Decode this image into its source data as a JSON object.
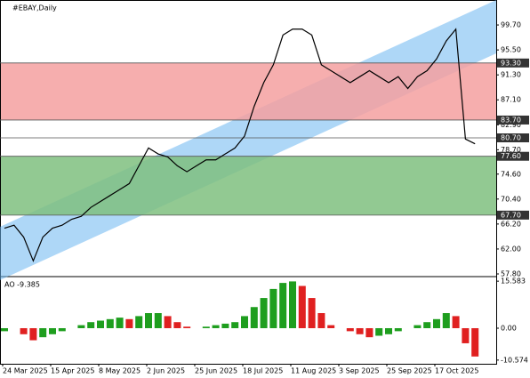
{
  "chart_data": [
    {
      "type": "line",
      "title": "#EBAY,Daily",
      "color": "#000000",
      "values": [
        65.5,
        66,
        64,
        60,
        64,
        65.5,
        66,
        67,
        67.5,
        69,
        70,
        71,
        72,
        73,
        76,
        79,
        78,
        77.5,
        76,
        75,
        76,
        77,
        77,
        78,
        79,
        81,
        86,
        90,
        93,
        98,
        99,
        99,
        98,
        93,
        92,
        91,
        90,
        91,
        92,
        91,
        90,
        91,
        89,
        91,
        92,
        94,
        97,
        99,
        80.5,
        79.7
      ],
      "ylim": [
        57.5,
        103.9
      ],
      "yticks": [
        {
          "value": 99.7,
          "label": "99.70"
        },
        {
          "value": 95.5,
          "label": "95.50"
        },
        {
          "value": 91.3,
          "label": "91.30"
        },
        {
          "value": 87.1,
          "label": "87.10"
        },
        {
          "value": 82.9,
          "label": "82.90"
        },
        {
          "value": 78.7,
          "label": "78.70"
        },
        {
          "value": 74.6,
          "label": "74.60"
        },
        {
          "value": 70.4,
          "label": "70.40"
        },
        {
          "value": 66.2,
          "label": "66.20"
        },
        {
          "value": 62,
          "label": "62.00"
        },
        {
          "value": 57.8,
          "label": "57.80"
        }
      ],
      "levels": [
        {
          "value": 93.3,
          "label": "93.30"
        },
        {
          "value": 83.7,
          "label": "83.70"
        },
        {
          "value": 80.7,
          "label": "80.70"
        },
        {
          "value": 77.6,
          "label": "77.60"
        },
        {
          "value": 67.7,
          "label": "67.70"
        }
      ],
      "zones": [
        {
          "from": 83.7,
          "to": 93.3,
          "color": "#f4a0a0"
        },
        {
          "from": 67.7,
          "to": 77.6,
          "color": "#7fbf7f"
        }
      ]
    },
    {
      "type": "bar",
      "title": "AO -9.385",
      "up_color": "#1e9e1e",
      "down_color": "#e02020",
      "categories": [
        "24 Mar 2025",
        null,
        null,
        null,
        null,
        "15 Apr 2025",
        null,
        null,
        null,
        null,
        "8 May 2025",
        null,
        null,
        null,
        null,
        "2 Jun 2025",
        null,
        null,
        null,
        null,
        "25 Jun 2025",
        null,
        null,
        null,
        null,
        "18 Jul 2025",
        null,
        null,
        null,
        null,
        "11 Aug 2025",
        null,
        null,
        null,
        null,
        "3 Sep 2025",
        null,
        null,
        null,
        null,
        "25 Sep 2025",
        null,
        null,
        null,
        null,
        "17 Oct 2025",
        null,
        null,
        null,
        null
      ],
      "values": [
        -1,
        0,
        -2,
        -4,
        -3,
        -2,
        -1,
        0,
        1,
        2,
        2.5,
        3,
        3.5,
        3,
        4,
        5,
        5,
        4,
        2,
        0.5,
        0,
        0.5,
        1,
        1.5,
        2,
        4,
        7,
        10,
        13,
        15,
        15.5,
        14,
        10,
        5,
        1,
        0,
        -1,
        -2,
        -3,
        -2.5,
        -2,
        -1,
        0,
        1,
        2,
        3,
        5,
        4,
        -5,
        -9.385
      ],
      "ylim": [
        -11.5,
        16.8
      ],
      "yticks": [
        {
          "value": 15.583,
          "label": "15.583"
        },
        {
          "value": 0,
          "label": "0.00"
        },
        {
          "value": -10.574,
          "label": "-10.574"
        }
      ]
    }
  ]
}
